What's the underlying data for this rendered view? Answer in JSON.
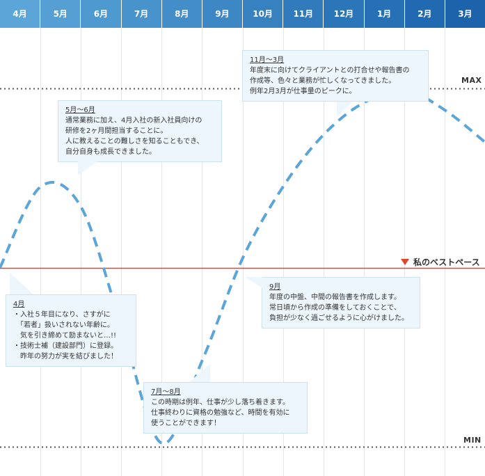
{
  "header": {
    "months": [
      "4月",
      "5月",
      "6月",
      "7月",
      "8月",
      "9月",
      "10月",
      "11月",
      "12月",
      "1月",
      "2月",
      "3月"
    ],
    "colors": [
      "#5ba5d9",
      "#559fd5",
      "#4f99d1",
      "#4993cd",
      "#438dc9",
      "#3d87c5",
      "#3781c1",
      "#317bbd",
      "#2b75b9",
      "#2670b5",
      "#2169b0",
      "#1c63ab"
    ]
  },
  "levels": {
    "max_label": "MAX",
    "min_label": "MIN"
  },
  "pace": {
    "label": "私のベストペース",
    "color": "#e0462c"
  },
  "chart_data": {
    "type": "line",
    "categories": [
      "4月",
      "5月",
      "6月",
      "7月",
      "8月",
      "9月",
      "10月",
      "11月",
      "12月",
      "1月",
      "2月",
      "3月"
    ],
    "series": [
      {
        "values": [
          0.0,
          0.45,
          0.34,
          -0.32,
          -0.98,
          -0.52,
          0.05,
          0.45,
          0.74,
          0.92,
          0.99,
          0.88
        ]
      }
    ],
    "ylim": [
      -1.0,
      1.0
    ],
    "reference_lines": {
      "max": 1.0,
      "best_pace": 0.0,
      "min": -1.0
    },
    "line_style": "dashed",
    "line_color": "#5ba5d9"
  },
  "bubbles": [
    {
      "title": "4月",
      "lines": [
        "・入社５年目になり、さすがに",
        "　「若者」扱いされない年齢に。",
        "　気を引き締めて励まないと…!!",
        "・技術士補（建設部門）に登録。",
        "　昨年の努力が実を結びました！"
      ]
    },
    {
      "title": "5月～6月",
      "lines": [
        "通常業務に加え、4月入社の新入社員向けの",
        "研修を2ヶ月間担当することに。",
        "人に教えることの難しさを知ることもでき、",
        "自分自身も成長できました。"
      ]
    },
    {
      "title": "7月～8月",
      "lines": [
        "この時期は例年、仕事が少し落ち着きます。",
        "仕事終わりに資格の勉強など、時間を有効に",
        "使うことができます！"
      ]
    },
    {
      "title": "9月",
      "lines": [
        "年度の中盤、中間の報告書を作成します。",
        "常日頃から作成の準備をしておくことで、",
        "負担が少なく過ごせるように心がけました。"
      ]
    },
    {
      "title": "11月～3月",
      "lines": [
        "年度末に向けてクライアントとの打合せや報告書の",
        "作成等、色々と業務が忙しくなってきました。",
        "例年2月3月が仕事量のピークに。"
      ]
    }
  ]
}
